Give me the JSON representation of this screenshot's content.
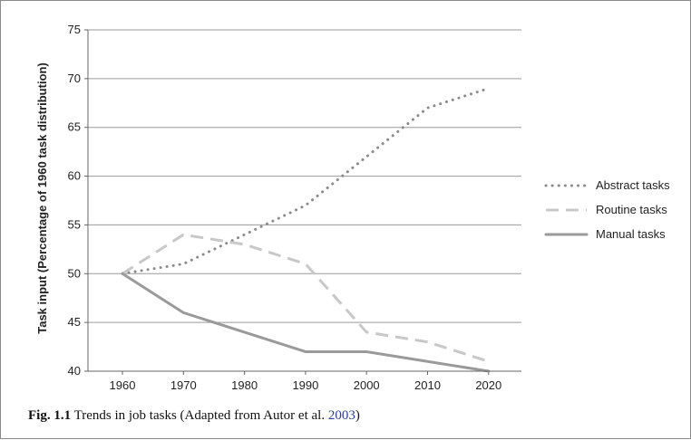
{
  "chart_data": {
    "type": "line",
    "xlabel": "",
    "ylabel": "Task input (Percentage of 1960 task distribution)",
    "x": [
      1960,
      1970,
      1980,
      1990,
      2000,
      2010,
      2020
    ],
    "xticks": [
      "1960",
      "1970",
      "1980",
      "1990",
      "2000",
      "2010",
      "2020"
    ],
    "yticks": [
      "40",
      "45",
      "50",
      "55",
      "60",
      "65",
      "70",
      "75"
    ],
    "ylim": [
      40,
      75
    ],
    "grid": "horizontal",
    "legend_position": "right",
    "series": [
      {
        "name": "Abstract tasks",
        "style": "dotted",
        "color": "#8a8a8a",
        "values": [
          50,
          51,
          54,
          57,
          62,
          67,
          69
        ]
      },
      {
        "name": "Routine tasks",
        "style": "dashed",
        "color": "#c8c8c8",
        "values": [
          50,
          54,
          53,
          51,
          44,
          43,
          41
        ]
      },
      {
        "name": "Manual tasks",
        "style": "solid",
        "color": "#9a9a9a",
        "values": [
          50,
          46,
          44,
          42,
          42,
          41,
          40
        ]
      }
    ]
  },
  "caption": {
    "label": "Fig. 1.1",
    "text": "Trends in job tasks (Adapted from Autor et al.",
    "year": "2003",
    "close": ")"
  }
}
